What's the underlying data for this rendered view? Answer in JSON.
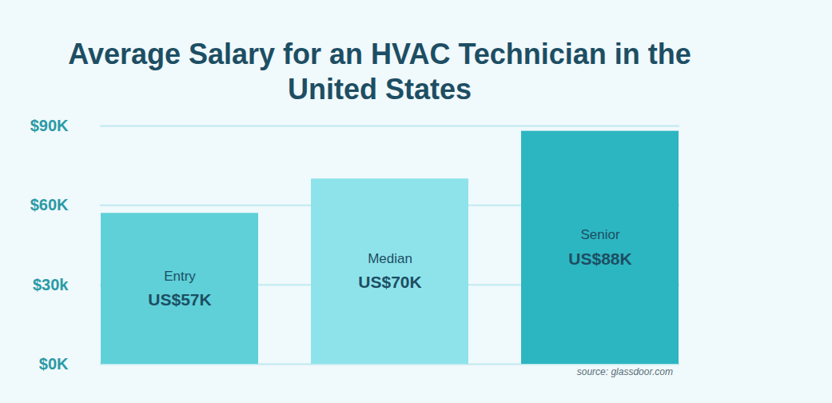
{
  "chart_data": {
    "type": "bar",
    "title": "Average Salary for an HVAC Technician in the United States",
    "categories": [
      "Entry",
      "Median",
      "Senior"
    ],
    "values": [
      57,
      70,
      88
    ],
    "value_labels": [
      "US$57K",
      "US$70K",
      "US$88K"
    ],
    "colors": [
      "#5fd0d8",
      "#8ee3eb",
      "#2cb6c1"
    ],
    "ylim": [
      0,
      90
    ],
    "yticks": [
      {
        "value": 0,
        "label": "$0K"
      },
      {
        "value": 30,
        "label": "$30k"
      },
      {
        "value": 60,
        "label": "$60K"
      },
      {
        "value": 90,
        "label": "$90K"
      }
    ],
    "grid": true,
    "data_labels": true,
    "tick_labels": "y",
    "source": "source: glassdoor.com"
  }
}
